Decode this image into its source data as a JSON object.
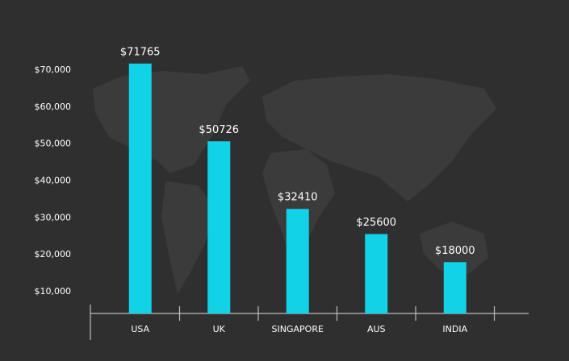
{
  "chart_data": {
    "type": "bar",
    "categories": [
      "USA",
      "UK",
      "SINGAPORE",
      "AUS",
      "INDIA"
    ],
    "values": [
      71765,
      50726,
      32410,
      25600,
      18000
    ],
    "value_labels": [
      "$71765",
      "$50726",
      "$32410",
      "$25600",
      "$18000"
    ],
    "color": "#12d2e8",
    "ylim": [
      4100,
      76000
    ],
    "yticks": [
      {
        "value": 10000,
        "label": "$10,000"
      },
      {
        "value": 20000,
        "label": "$20,000"
      },
      {
        "value": 30000,
        "label": "$30,000"
      },
      {
        "value": 40000,
        "label": "$40,000"
      },
      {
        "value": 50000,
        "label": "$50,000"
      },
      {
        "value": 60000,
        "label": "$60,000"
      },
      {
        "value": 70000,
        "label": "$70,000"
      }
    ],
    "grid": false
  }
}
